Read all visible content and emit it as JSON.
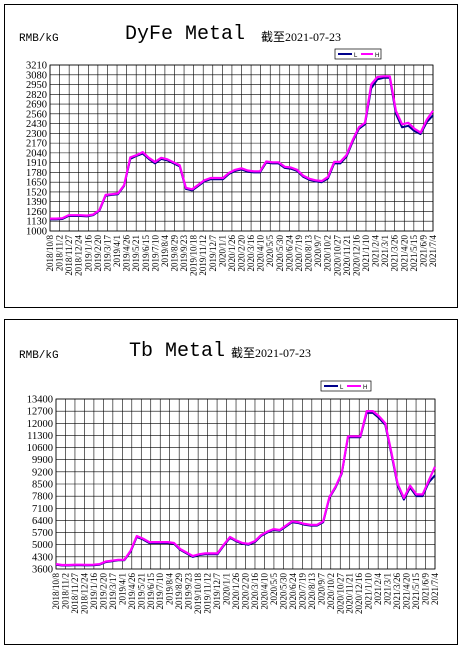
{
  "chart_data": [
    {
      "type": "line",
      "title": "DyFe Metal",
      "subtitle": "截至2021-07-23",
      "ylabel": "RMB/kG",
      "xlabel": "",
      "ylim": [
        1000,
        3210
      ],
      "yticks": [
        1000,
        1130,
        1260,
        1390,
        1520,
        1650,
        1780,
        1910,
        2040,
        2170,
        2300,
        2430,
        2560,
        2690,
        2820,
        2950,
        3080,
        3210
      ],
      "xticks": [
        "2018/10/8",
        "2018/11/2",
        "2018/11/27",
        "2018/12/24",
        "2019/1/16",
        "2019/2/20",
        "2019/3/17",
        "2019/4/1",
        "2019/4/26",
        "2019/5/21",
        "2019/6/15",
        "2019/7/10",
        "2019/8/4",
        "2019/8/29",
        "2019/9/23",
        "2019/10/18",
        "2019/11/12",
        "2019/12/7",
        "2020/1/1",
        "2020/1/26",
        "2020/2/20",
        "2020/3/16",
        "2020/4/10",
        "2020/5/5",
        "2020/5/30",
        "2020/6/24",
        "2020/7/19",
        "2020/8/13",
        "2020/9/7",
        "2020/10/2",
        "2020/10/27",
        "2020/11/21",
        "2020/12/16",
        "2021/1/10",
        "2021/2/4",
        "2021/3/1",
        "2021/3/26",
        "2021/4/20",
        "2021/5/15",
        "2021/6/9",
        "2021/7/4"
      ],
      "grid": true,
      "legend": "top-right",
      "series": [
        {
          "name": "L",
          "color": "#00008b",
          "values": [
            1155,
            1155,
            1160,
            1200,
            1200,
            1200,
            1195,
            1210,
            1270,
            1470,
            1480,
            1490,
            1600,
            1960,
            2000,
            2030,
            1960,
            1900,
            1960,
            1940,
            1900,
            1860,
            1560,
            1540,
            1600,
            1660,
            1690,
            1690,
            1690,
            1760,
            1800,
            1820,
            1790,
            1780,
            1780,
            1910,
            1900,
            1900,
            1840,
            1830,
            1800,
            1720,
            1680,
            1660,
            1650,
            1700,
            1900,
            1900,
            1990,
            2190,
            2360,
            2420,
            2900,
            3020,
            3040,
            3040,
            2560,
            2380,
            2400,
            2330,
            2290,
            2450,
            2540
          ]
        },
        {
          "name": "H",
          "color": "#ff00ff",
          "values": [
            1165,
            1165,
            1170,
            1210,
            1210,
            1210,
            1205,
            1220,
            1280,
            1480,
            1490,
            1500,
            1610,
            1980,
            2010,
            2050,
            1975,
            1920,
            1975,
            1955,
            1915,
            1875,
            1575,
            1555,
            1615,
            1675,
            1705,
            1705,
            1705,
            1775,
            1815,
            1835,
            1805,
            1795,
            1795,
            1925,
            1915,
            1915,
            1855,
            1845,
            1815,
            1735,
            1695,
            1675,
            1665,
            1720,
            1920,
            1920,
            2010,
            2210,
            2380,
            2440,
            2950,
            3050,
            3060,
            3060,
            2600,
            2420,
            2440,
            2360,
            2310,
            2480,
            2600
          ]
        }
      ]
    },
    {
      "type": "line",
      "title": "Tb Metal",
      "subtitle": "截至2021-07-23",
      "ylabel": "RMB/kG",
      "xlabel": "",
      "ylim": [
        3600,
        13400
      ],
      "yticks": [
        3600,
        4300,
        5000,
        5700,
        6400,
        7100,
        7800,
        8500,
        9200,
        9900,
        10600,
        11300,
        12000,
        12700,
        13400
      ],
      "xticks": [
        "2018/10/8",
        "2018/11/2",
        "2018/11/27",
        "2018/12/24",
        "2019/1/16",
        "2019/2/20",
        "2019/3/17",
        "2019/4/1",
        "2019/4/26",
        "2019/5/21",
        "2019/6/15",
        "2019/7/10",
        "2019/8/4",
        "2019/8/29",
        "2019/9/23",
        "2019/10/18",
        "2019/11/12",
        "2019/12/7",
        "2020/1/1",
        "2020/1/26",
        "2020/2/20",
        "2020/3/16",
        "2020/4/10",
        "2020/5/5",
        "2020/5/30",
        "2020/6/24",
        "2020/7/19",
        "2020/8/13",
        "2020/9/7",
        "2020/10/2",
        "2020/10/27",
        "2020/11/21",
        "2020/12/16",
        "2021/1/10",
        "2021/2/4",
        "2021/3/1",
        "2021/3/26",
        "2021/4/20",
        "2021/5/15",
        "2021/6/9",
        "2021/7/4"
      ],
      "grid": true,
      "legend": "top-right",
      "series": [
        {
          "name": "L",
          "color": "#00008b",
          "values": [
            3850,
            3800,
            3800,
            3820,
            3820,
            3810,
            3820,
            3850,
            4000,
            4050,
            4100,
            4100,
            4600,
            5450,
            5300,
            5100,
            5100,
            5100,
            5100,
            5050,
            4700,
            4500,
            4300,
            4400,
            4450,
            4450,
            4450,
            4950,
            5400,
            5200,
            5050,
            5000,
            5150,
            5500,
            5700,
            5850,
            5800,
            6050,
            6300,
            6250,
            6150,
            6100,
            6100,
            6300,
            7700,
            8300,
            9100,
            11200,
            11200,
            11200,
            12600,
            12600,
            12300,
            11900,
            10200,
            8400,
            7600,
            8300,
            7800,
            7800,
            8600,
            9000
          ]
        },
        {
          "name": "H",
          "color": "#ff00ff",
          "values": [
            3880,
            3830,
            3830,
            3850,
            3850,
            3840,
            3850,
            3880,
            4030,
            4080,
            4130,
            4130,
            4650,
            5500,
            5350,
            5150,
            5150,
            5150,
            5150,
            5100,
            4750,
            4550,
            4350,
            4450,
            4500,
            4500,
            4500,
            5000,
            5450,
            5250,
            5100,
            5050,
            5200,
            5550,
            5750,
            5900,
            5850,
            6100,
            6350,
            6300,
            6200,
            6150,
            6150,
            6350,
            7750,
            8350,
            9150,
            11250,
            11250,
            11250,
            12700,
            12700,
            12400,
            12000,
            10300,
            8500,
            7700,
            8400,
            7900,
            7900,
            8700,
            9500
          ]
        }
      ]
    }
  ]
}
